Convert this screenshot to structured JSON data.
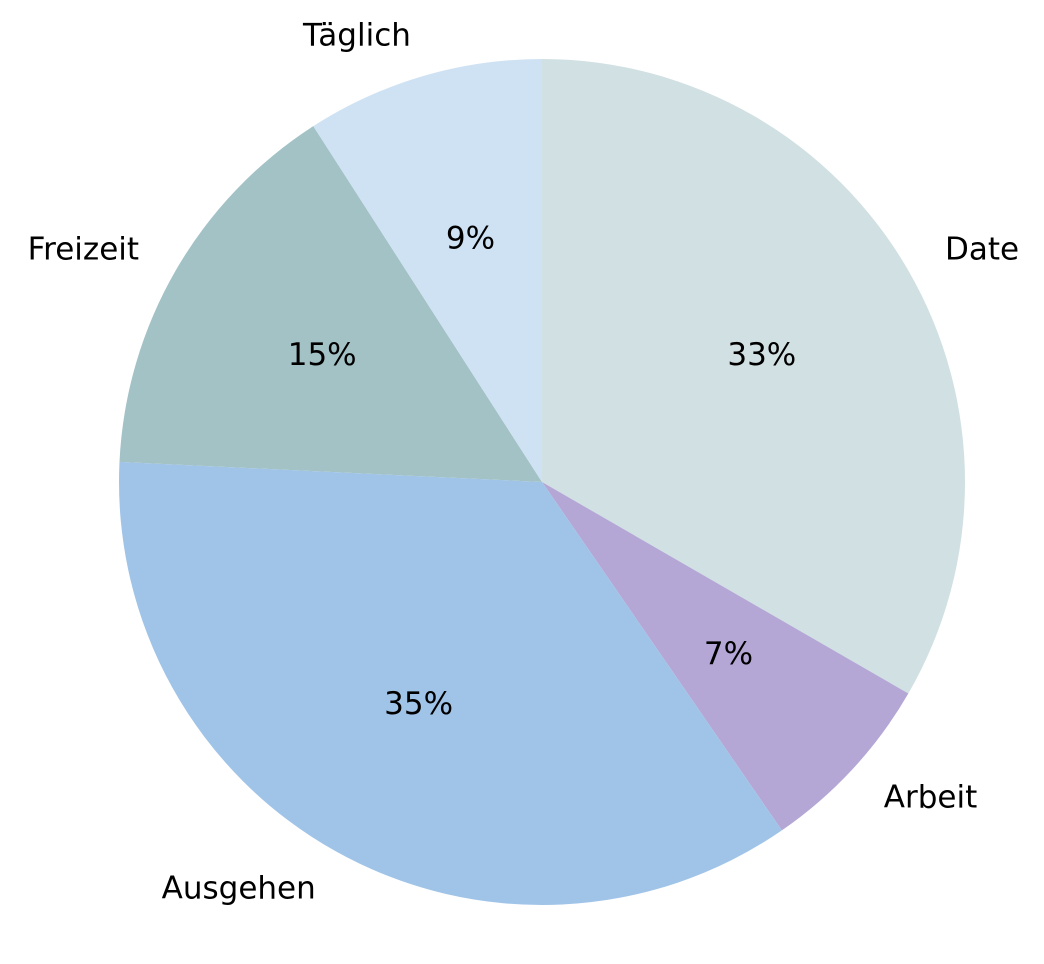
{
  "chart_data": {
    "type": "pie",
    "title": "",
    "start_angle_deg": 90,
    "direction": "clockwise",
    "slices": [
      {
        "label": "Date",
        "value": 33,
        "pct_label": "33%",
        "color": "#d1e0e3"
      },
      {
        "label": "Arbeit",
        "value": 7,
        "pct_label": "7%",
        "color": "#b4a7d6"
      },
      {
        "label": "Ausgehen",
        "value": 35,
        "pct_label": "35%",
        "color": "#a0c4e8"
      },
      {
        "label": "Freizeit",
        "value": 15,
        "pct_label": "15%",
        "color": "#a3c2c6"
      },
      {
        "label": "Täglich",
        "value": 9,
        "pct_label": "9%",
        "color": "#cfe2f3"
      }
    ]
  }
}
